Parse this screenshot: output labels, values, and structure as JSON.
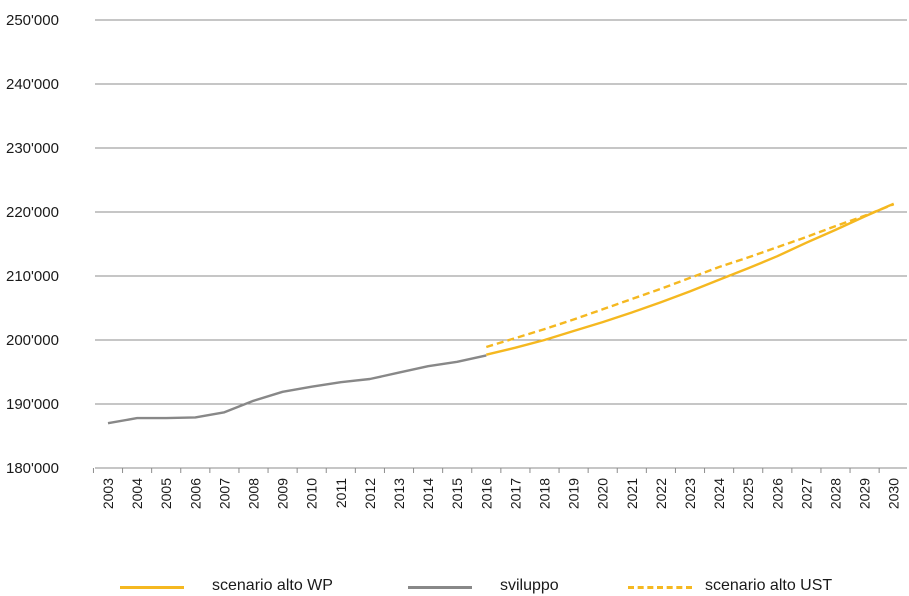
{
  "chart_data": {
    "type": "line",
    "title": "",
    "xlabel": "",
    "ylabel": "",
    "x": [
      "2003",
      "2004",
      "2005",
      "2006",
      "2007",
      "2008",
      "2009",
      "2010",
      "2011",
      "2012",
      "2013",
      "2014",
      "2015",
      "2016",
      "2017",
      "2018",
      "2019",
      "2020",
      "2021",
      "2022",
      "2023",
      "2024",
      "2025",
      "2026",
      "2027",
      "2028",
      "2029",
      "2030"
    ],
    "ylim": [
      180000,
      250000
    ],
    "yticks": [
      {
        "value": 180000,
        "label": "180'000"
      },
      {
        "value": 190000,
        "label": "190'000"
      },
      {
        "value": 200000,
        "label": "200'000"
      },
      {
        "value": 210000,
        "label": "210'000"
      },
      {
        "value": 220000,
        "label": "220'000"
      },
      {
        "value": 230000,
        "label": "230'000"
      },
      {
        "value": 240000,
        "label": "240'000"
      },
      {
        "value": 250000,
        "label": "250'000"
      }
    ],
    "grid": "horizontal",
    "legend_position": "bottom",
    "series": [
      {
        "name": "scenario alto WP",
        "color": "#f5b820",
        "style": "solid",
        "points": [
          [
            2016,
            197700
          ],
          [
            2017,
            198800
          ],
          [
            2018,
            200000
          ],
          [
            2019,
            201400
          ],
          [
            2020,
            202800
          ],
          [
            2021,
            204300
          ],
          [
            2022,
            205900
          ],
          [
            2023,
            207600
          ],
          [
            2024,
            209400
          ],
          [
            2025,
            211200
          ],
          [
            2026,
            213100
          ],
          [
            2027,
            215200
          ],
          [
            2028,
            217200
          ],
          [
            2029,
            219300
          ],
          [
            2030,
            221300
          ]
        ]
      },
      {
        "name": "sviluppo",
        "color": "#888888",
        "style": "solid",
        "points": [
          [
            2003,
            187000
          ],
          [
            2004,
            187800
          ],
          [
            2005,
            187800
          ],
          [
            2006,
            187900
          ],
          [
            2007,
            188700
          ],
          [
            2008,
            190500
          ],
          [
            2009,
            191900
          ],
          [
            2010,
            192700
          ],
          [
            2011,
            193400
          ],
          [
            2012,
            193900
          ],
          [
            2013,
            194900
          ],
          [
            2014,
            195900
          ],
          [
            2015,
            196600
          ],
          [
            2016,
            197600
          ]
        ]
      },
      {
        "name": "scenario alto UST",
        "color": "#f5b820",
        "style": "dashed",
        "points": [
          [
            2016,
            198900
          ],
          [
            2017,
            200300
          ],
          [
            2018,
            201700
          ],
          [
            2019,
            203200
          ],
          [
            2020,
            204800
          ],
          [
            2021,
            206400
          ],
          [
            2022,
            208000
          ],
          [
            2023,
            209700
          ],
          [
            2024,
            211400
          ],
          [
            2025,
            212900
          ],
          [
            2026,
            214500
          ],
          [
            2027,
            216100
          ],
          [
            2028,
            217800
          ],
          [
            2029,
            219400
          ],
          [
            2030,
            221200
          ]
        ]
      }
    ]
  }
}
